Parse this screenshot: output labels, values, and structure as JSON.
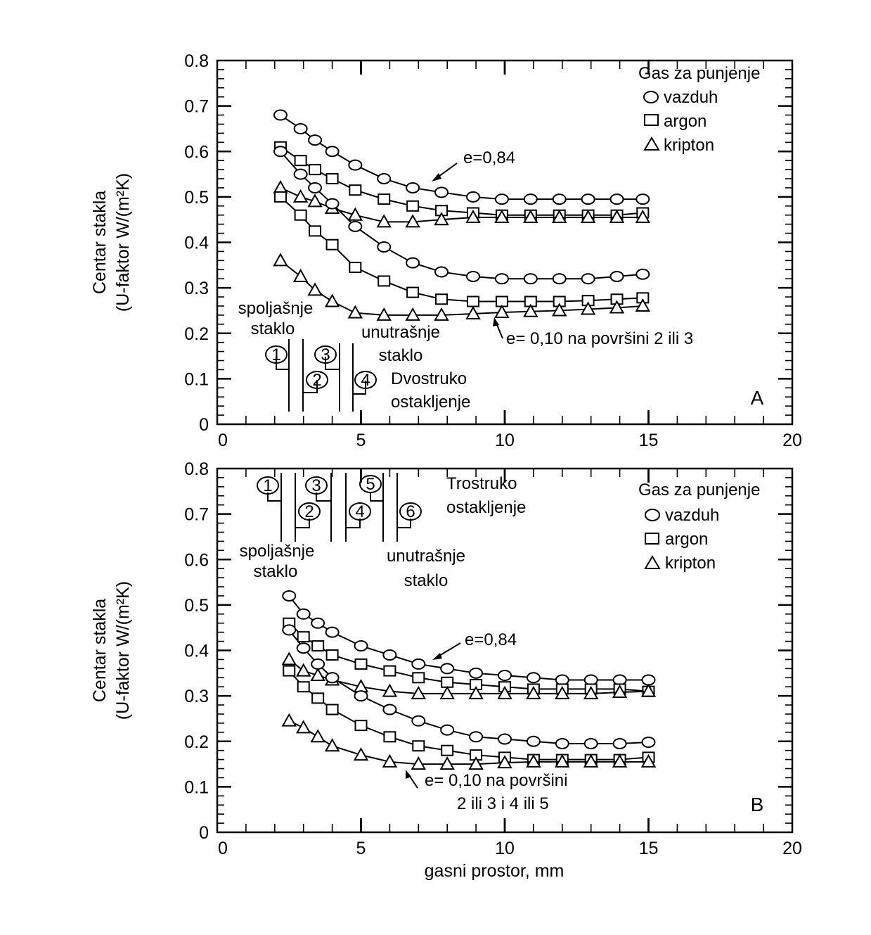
{
  "chart_data": [
    {
      "type": "line",
      "panel_label": "A",
      "xlabel": "",
      "ylabel_line1": "Centar stakla",
      "ylabel_line2": "(U-faktor W/(m²K)",
      "xlim": [
        0,
        20
      ],
      "ylim": [
        0,
        0.8
      ],
      "xticks": [
        "0",
        "5",
        "10",
        "15",
        "20"
      ],
      "yticks": [
        "0",
        "0.1",
        "0.2",
        "0.3",
        "0.4",
        "0.5",
        "0.6",
        "0.7",
        "0.8"
      ],
      "legend": {
        "position": "top-right",
        "title": "Gas za punjenje",
        "entries": [
          {
            "marker": "circle",
            "label": "vazduh"
          },
          {
            "marker": "square",
            "label": "argon"
          },
          {
            "marker": "triangle",
            "label": "kripton"
          }
        ]
      },
      "annotations": {
        "e_high": "e=0,84",
        "e_low": "e= 0,10 na površini 2 ili 3",
        "outer_glass_1": "spoljašnje",
        "outer_glass_2": "staklo",
        "inner_glass_1": "unutrašnje",
        "inner_glass_2": "staklo",
        "glazing_1": "Dvostruko",
        "glazing_2": "ostakljenje",
        "surfaces": [
          "1",
          "2",
          "3",
          "4"
        ]
      },
      "series": [
        {
          "marker": "circle",
          "emissivity": "0,84",
          "x": [
            2.2,
            2.9,
            3.4,
            4.0,
            4.8,
            5.8,
            6.8,
            7.8,
            8.9,
            9.9,
            10.9,
            11.9,
            12.9,
            13.9,
            14.8
          ],
          "y": [
            0.68,
            0.65,
            0.625,
            0.6,
            0.57,
            0.54,
            0.52,
            0.51,
            0.5,
            0.495,
            0.495,
            0.495,
            0.495,
            0.495,
            0.495
          ]
        },
        {
          "marker": "square",
          "emissivity": "0,84",
          "x": [
            2.2,
            2.9,
            3.4,
            4.0,
            4.8,
            5.8,
            6.8,
            7.8,
            8.9,
            9.9,
            10.9,
            11.9,
            12.9,
            13.9,
            14.8
          ],
          "y": [
            0.61,
            0.58,
            0.56,
            0.54,
            0.515,
            0.495,
            0.48,
            0.47,
            0.465,
            0.46,
            0.46,
            0.46,
            0.46,
            0.46,
            0.465
          ]
        },
        {
          "marker": "triangle",
          "emissivity": "0,84",
          "x": [
            2.2,
            2.9,
            3.4,
            4.0,
            4.8,
            5.8,
            6.8,
            7.8,
            8.9,
            9.9,
            10.9,
            11.9,
            12.9,
            13.9,
            14.8
          ],
          "y": [
            0.52,
            0.5,
            0.49,
            0.475,
            0.46,
            0.445,
            0.445,
            0.45,
            0.455,
            0.455,
            0.455,
            0.455,
            0.455,
            0.455,
            0.455
          ]
        },
        {
          "marker": "circle",
          "emissivity": "0,10",
          "x": [
            2.2,
            2.9,
            3.4,
            4.0,
            4.8,
            5.8,
            6.8,
            7.8,
            8.9,
            9.9,
            10.9,
            11.9,
            12.9,
            13.9,
            14.8
          ],
          "y": [
            0.6,
            0.55,
            0.52,
            0.485,
            0.435,
            0.39,
            0.355,
            0.335,
            0.325,
            0.32,
            0.32,
            0.32,
            0.32,
            0.325,
            0.33
          ]
        },
        {
          "marker": "square",
          "emissivity": "0,10",
          "x": [
            2.2,
            2.9,
            3.4,
            4.0,
            4.8,
            5.8,
            6.8,
            7.8,
            8.9,
            9.9,
            10.9,
            11.9,
            12.9,
            13.9,
            14.8
          ],
          "y": [
            0.5,
            0.46,
            0.425,
            0.395,
            0.345,
            0.315,
            0.29,
            0.275,
            0.27,
            0.27,
            0.27,
            0.27,
            0.272,
            0.275,
            0.278
          ]
        },
        {
          "marker": "triangle",
          "emissivity": "0,10",
          "x": [
            2.2,
            2.9,
            3.4,
            4.0,
            4.8,
            5.8,
            6.8,
            7.8,
            8.9,
            9.9,
            10.9,
            11.9,
            12.9,
            13.9,
            14.8
          ],
          "y": [
            0.36,
            0.325,
            0.295,
            0.27,
            0.245,
            0.24,
            0.24,
            0.24,
            0.243,
            0.246,
            0.248,
            0.25,
            0.253,
            0.256,
            0.26
          ]
        }
      ]
    },
    {
      "type": "line",
      "panel_label": "B",
      "xlabel": "gasni prostor, mm",
      "ylabel_line1": "Centar stakla",
      "ylabel_line2": "(U-faktor W/(m²K)",
      "xlim": [
        0,
        20
      ],
      "ylim": [
        0,
        0.8
      ],
      "xticks": [
        "0",
        "5",
        "10",
        "15",
        "20"
      ],
      "yticks": [
        "0",
        "0.1",
        "0.2",
        "0.3",
        "0.4",
        "0.5",
        "0.6",
        "0.7",
        "0.8"
      ],
      "legend": {
        "position": "top-right",
        "title": "Gas za punjenje",
        "entries": [
          {
            "marker": "circle",
            "label": "vazduh"
          },
          {
            "marker": "square",
            "label": "argon"
          },
          {
            "marker": "triangle",
            "label": "kripton"
          }
        ]
      },
      "annotations": {
        "e_high": "e=0,84",
        "e_low_1": "e= 0,10 na površini",
        "e_low_2": "2 ili 3 i 4 ili 5",
        "outer_glass_1": "spoljašnje",
        "outer_glass_2": "staklo",
        "inner_glass_1": "unutrašnje",
        "inner_glass_2": "staklo",
        "glazing_1": "Trostruko",
        "glazing_2": "ostakljenje",
        "surfaces": [
          "1",
          "2",
          "3",
          "4",
          "5",
          "6"
        ]
      },
      "series": [
        {
          "marker": "circle",
          "emissivity": "0,84",
          "x": [
            2.5,
            3.0,
            3.5,
            4.0,
            5.0,
            6.0,
            7.0,
            8.0,
            9.0,
            10.0,
            11.0,
            12.0,
            13.0,
            14.0,
            15.0
          ],
          "y": [
            0.52,
            0.48,
            0.46,
            0.44,
            0.41,
            0.39,
            0.37,
            0.36,
            0.35,
            0.345,
            0.34,
            0.335,
            0.335,
            0.335,
            0.335
          ]
        },
        {
          "marker": "square",
          "emissivity": "0,84",
          "x": [
            2.5,
            3.0,
            3.5,
            4.0,
            5.0,
            6.0,
            7.0,
            8.0,
            9.0,
            10.0,
            11.0,
            12.0,
            13.0,
            14.0,
            15.0
          ],
          "y": [
            0.46,
            0.43,
            0.41,
            0.39,
            0.37,
            0.355,
            0.34,
            0.33,
            0.325,
            0.32,
            0.315,
            0.315,
            0.315,
            0.315,
            0.31
          ]
        },
        {
          "marker": "triangle",
          "emissivity": "0,84",
          "x": [
            2.5,
            3.0,
            3.5,
            4.0,
            5.0,
            6.0,
            7.0,
            8.0,
            9.0,
            10.0,
            11.0,
            12.0,
            13.0,
            14.0,
            15.0
          ],
          "y": [
            0.38,
            0.355,
            0.345,
            0.335,
            0.32,
            0.31,
            0.305,
            0.305,
            0.305,
            0.305,
            0.305,
            0.305,
            0.305,
            0.308,
            0.31
          ]
        },
        {
          "marker": "circle",
          "emissivity": "0,10",
          "x": [
            2.5,
            3.0,
            3.5,
            4.0,
            5.0,
            6.0,
            7.0,
            8.0,
            9.0,
            10.0,
            11.0,
            12.0,
            13.0,
            14.0,
            15.0
          ],
          "y": [
            0.445,
            0.405,
            0.37,
            0.34,
            0.3,
            0.27,
            0.245,
            0.225,
            0.21,
            0.205,
            0.2,
            0.195,
            0.195,
            0.195,
            0.198
          ]
        },
        {
          "marker": "square",
          "emissivity": "0,10",
          "x": [
            2.5,
            3.0,
            3.5,
            4.0,
            5.0,
            6.0,
            7.0,
            8.0,
            9.0,
            10.0,
            11.0,
            12.0,
            13.0,
            14.0,
            15.0
          ],
          "y": [
            0.355,
            0.32,
            0.295,
            0.27,
            0.235,
            0.21,
            0.19,
            0.18,
            0.17,
            0.165,
            0.16,
            0.16,
            0.16,
            0.16,
            0.165
          ]
        },
        {
          "marker": "triangle",
          "emissivity": "0,10",
          "x": [
            2.5,
            3.0,
            3.5,
            4.0,
            5.0,
            6.0,
            7.0,
            8.0,
            9.0,
            10.0,
            11.0,
            12.0,
            13.0,
            14.0,
            15.0
          ],
          "y": [
            0.245,
            0.23,
            0.21,
            0.19,
            0.17,
            0.155,
            0.15,
            0.15,
            0.15,
            0.153,
            0.155,
            0.155,
            0.155,
            0.155,
            0.155
          ]
        }
      ]
    }
  ]
}
